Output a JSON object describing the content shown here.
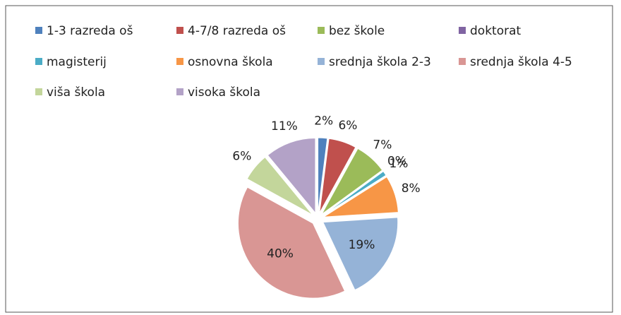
{
  "chart_data": {
    "type": "pie",
    "categories": [
      "1-3 razreda oš",
      "4-7/8 razreda oš",
      "bez škole",
      "doktorat",
      "magisterij",
      "osnovna škola",
      "srednja škola 2-3",
      "srednja škola 4-5",
      "viša škola",
      "visoka škola"
    ],
    "values": [
      2,
      6,
      7,
      0,
      1,
      8,
      19,
      40,
      6,
      11
    ],
    "value_labels": [
      "2%",
      "6%",
      "7%",
      "0%",
      "1%",
      "8%",
      "19%",
      "40%",
      "6%",
      "11%"
    ],
    "colors": [
      "#4f81bd",
      "#c0504d",
      "#9bbb59",
      "#8064a2",
      "#4bacc6",
      "#f79646",
      "#95b3d7",
      "#d99694",
      "#c3d69b",
      "#b3a2c7"
    ],
    "legend": "top"
  }
}
